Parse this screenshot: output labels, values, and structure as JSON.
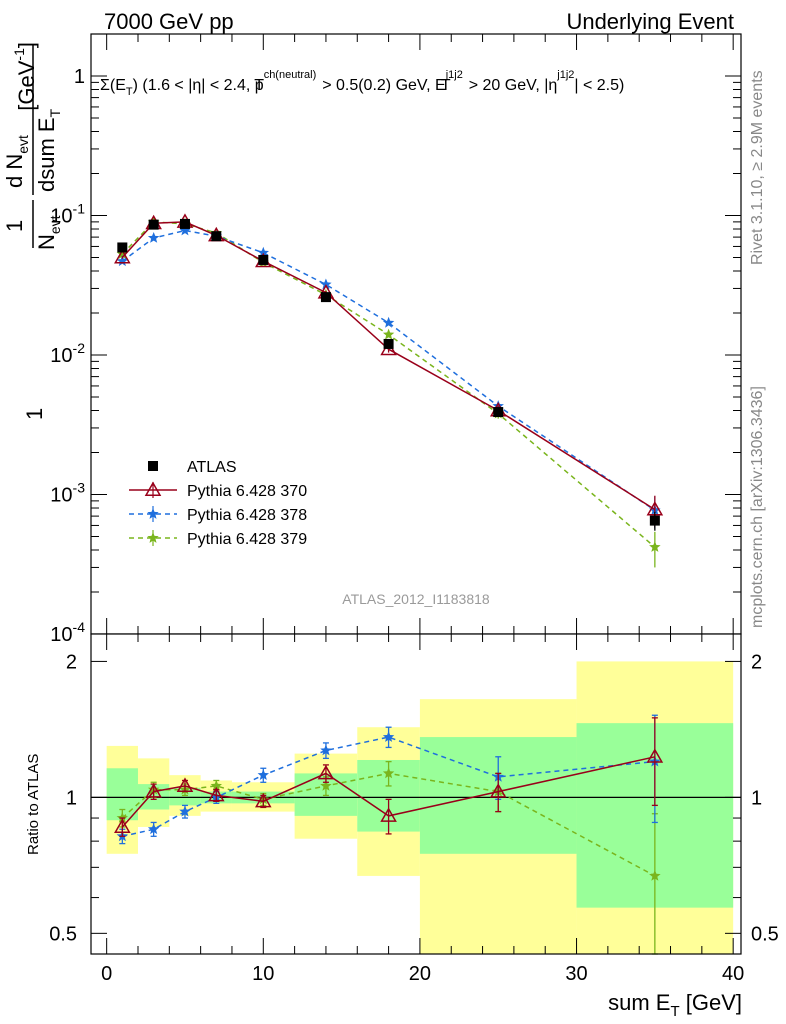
{
  "header": {
    "left": "7000 GeV pp",
    "right": "Underlying Event"
  },
  "side_text": {
    "top": "Rivet 3.1.10, ≥ 2.9M events",
    "bottom": "mcplots.cern.ch [arXiv:1306.3436]"
  },
  "watermark": "ATLAS_2012_I1183818",
  "colors": {
    "atlas": "#000000",
    "p370": "#99001a",
    "p378": "#1f6fdd",
    "p379": "#7ab51d",
    "band_outer": "#ffff99",
    "band_inner": "#99ff99"
  },
  "chart_data": [
    {
      "type": "scatter",
      "panel": "main",
      "title": "Σ(E_T) (1.6 < |η| < 2.4, p_T^ch(neutral) > 0.5(0.2) GeV, E_T^j1j2 > 20 GeV, |η^j1j2| < 2.5)",
      "ylabel": "1/N_evt dN_evt/dsum E_T [GeV^-1]",
      "yscale": "log",
      "ylim": [
        0.0001,
        2
      ],
      "xlim": [
        -1,
        40.5
      ],
      "ytick_labels": [
        "1",
        "10^-1",
        "10^-2",
        "10^-3",
        "10^-4"
      ],
      "legend_position": "lower-left",
      "x": [
        1,
        3,
        5,
        7,
        10,
        14,
        18,
        25,
        35
      ],
      "series": [
        {
          "name": "ATLAS",
          "values": [
            0.059,
            0.086,
            0.087,
            0.071,
            0.048,
            0.026,
            0.012,
            0.0039,
            0.00065
          ],
          "errors": [
            0.002,
            0.002,
            0.002,
            0.002,
            0.002,
            0.001,
            0.0005,
            0.0003,
            0.0001
          ],
          "marker": "square"
        },
        {
          "name": "Pythia 6.428 370",
          "values": [
            0.05,
            0.088,
            0.09,
            0.072,
            0.047,
            0.028,
            0.011,
            0.004,
            0.00078
          ],
          "errors": [
            0.001,
            0.001,
            0.001,
            0.001,
            0.001,
            0.0008,
            0.0006,
            0.0003,
            0.0002
          ],
          "marker": "open-triangle",
          "line": "solid"
        },
        {
          "name": "Pythia 6.428 378",
          "values": [
            0.047,
            0.069,
            0.078,
            0.071,
            0.054,
            0.032,
            0.017,
            0.0043,
            0.00077
          ],
          "errors": [
            0.001,
            0.001,
            0.001,
            0.001,
            0.001,
            0.0008,
            0.0006,
            0.0003,
            0.0002
          ],
          "marker": "star",
          "line": "dashed"
        },
        {
          "name": "Pythia 6.428 379",
          "values": [
            0.053,
            0.09,
            0.087,
            0.075,
            0.046,
            0.027,
            0.014,
            0.0038,
            0.00042
          ],
          "errors": [
            0.001,
            0.001,
            0.001,
            0.001,
            0.001,
            0.0008,
            0.0006,
            0.0003,
            0.00012
          ],
          "marker": "star",
          "line": "dashed"
        }
      ]
    },
    {
      "type": "line",
      "panel": "ratio",
      "ylabel": "Ratio to ATLAS",
      "xlabel": "sum E_T [GeV]",
      "yscale": "log",
      "ylim": [
        0.45,
        2.3
      ],
      "xlim": [
        -1,
        40.5
      ],
      "xticks": [
        0,
        10,
        20,
        30,
        40
      ],
      "yticks": [
        0.5,
        1,
        2
      ],
      "reference_line": 1,
      "bands": [
        {
          "x0": 0,
          "x1": 2,
          "outer": [
            0.75,
            1.3
          ],
          "inner": [
            0.89,
            1.16
          ]
        },
        {
          "x0": 2,
          "x1": 4,
          "outer": [
            0.86,
            1.22
          ],
          "inner": [
            0.94,
            1.07
          ]
        },
        {
          "x0": 4,
          "x1": 6,
          "outer": [
            0.91,
            1.12
          ],
          "inner": [
            0.96,
            1.05
          ]
        },
        {
          "x0": 6,
          "x1": 8,
          "outer": [
            0.93,
            1.09
          ],
          "inner": [
            0.97,
            1.03
          ]
        },
        {
          "x0": 8,
          "x1": 12,
          "outer": [
            0.93,
            1.08
          ],
          "inner": [
            0.97,
            1.03
          ]
        },
        {
          "x0": 12,
          "x1": 16,
          "outer": [
            0.81,
            1.25
          ],
          "inner": [
            0.91,
            1.13
          ]
        },
        {
          "x0": 16,
          "x1": 20,
          "outer": [
            0.67,
            1.43
          ],
          "inner": [
            0.84,
            1.21
          ]
        },
        {
          "x0": 20,
          "x1": 30,
          "outer": [
            0.37,
            1.65
          ],
          "inner": [
            0.75,
            1.36
          ]
        },
        {
          "x0": 30,
          "x1": 40,
          "outer": [
            0.35,
            2.0
          ],
          "inner": [
            0.57,
            1.46
          ]
        }
      ],
      "x": [
        1,
        3,
        5,
        7,
        10,
        14,
        18,
        25,
        35
      ],
      "series": [
        {
          "name": "Pythia 6.428 370",
          "values": [
            0.86,
            1.03,
            1.06,
            1.01,
            0.98,
            1.13,
            0.91,
            1.03,
            1.23
          ],
          "errors": [
            0.04,
            0.04,
            0.03,
            0.03,
            0.03,
            0.05,
            0.08,
            0.1,
            0.27
          ]
        },
        {
          "name": "Pythia 6.428 378",
          "values": [
            0.82,
            0.85,
            0.93,
            1.0,
            1.12,
            1.27,
            1.36,
            1.11,
            1.2
          ],
          "errors": [
            0.03,
            0.03,
            0.03,
            0.03,
            0.04,
            0.05,
            0.07,
            0.12,
            0.32
          ]
        },
        {
          "name": "Pythia 6.428 379",
          "values": [
            0.9,
            1.04,
            1.04,
            1.06,
            0.99,
            1.06,
            1.13,
            1.03,
            0.67
          ],
          "errors": [
            0.04,
            0.04,
            0.03,
            0.03,
            0.03,
            0.05,
            0.07,
            0.1,
            0.25
          ]
        }
      ]
    }
  ]
}
